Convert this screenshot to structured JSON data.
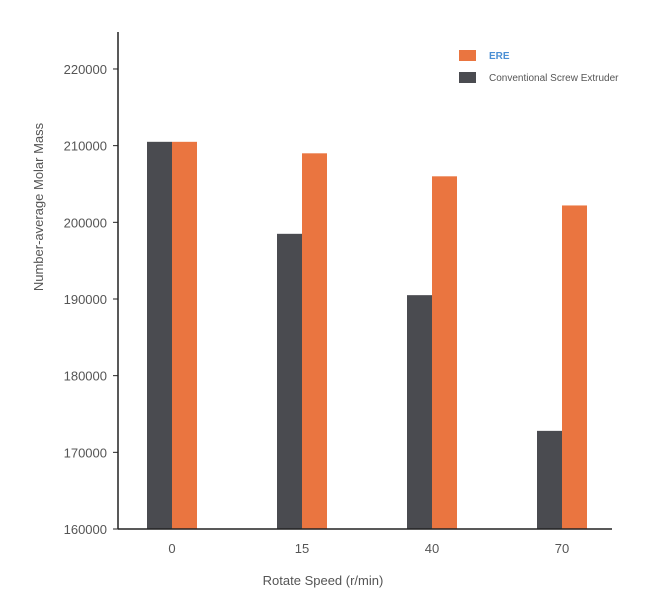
{
  "chart_data": {
    "type": "bar",
    "title": "",
    "xlabel": "Rotate Speed (r/min)",
    "ylabel": "Number-average Molar Mass",
    "categories": [
      "0",
      "15",
      "40",
      "70"
    ],
    "series": [
      {
        "name": "Conventional Screw Extruder",
        "values": [
          210500,
          198500,
          190500,
          172800
        ],
        "color": "#4a4b50"
      },
      {
        "name": "ERE",
        "values": [
          210500,
          209000,
          206000,
          202200
        ],
        "color": "#ea7540"
      }
    ],
    "ylim": [
      160000,
      224000
    ],
    "yticks": [
      160000,
      170000,
      180000,
      190000,
      200000,
      210000,
      220000
    ],
    "ytick_labels": [
      "160000",
      "170000",
      "180000",
      "190000",
      "200000",
      "210000",
      "220000"
    ],
    "grid": false,
    "legend": {
      "placement": "top-right",
      "entries": [
        {
          "label": "ERE",
          "color": "#ea7540",
          "label_color": "#4a8fd4"
        },
        {
          "label": "Conventional Screw Extruder",
          "color": "#4a4b50",
          "label_color": "#555555"
        }
      ]
    }
  }
}
